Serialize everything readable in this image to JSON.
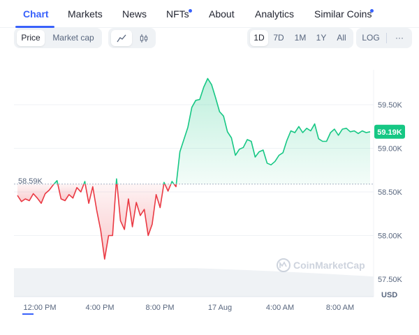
{
  "nav": {
    "tabs": [
      {
        "label": "Chart",
        "active": true
      },
      {
        "label": "Markets"
      },
      {
        "label": "News"
      },
      {
        "label": "NFTs",
        "dot": true
      },
      {
        "label": "About"
      },
      {
        "label": "Analytics"
      },
      {
        "label": "Similar Coins",
        "dot": true
      }
    ]
  },
  "toolbar": {
    "metric": {
      "price_label": "Price",
      "market_cap_label": "Market cap",
      "selected": "Price"
    },
    "chart_style": {
      "line_icon": "line-chart-icon",
      "candle_icon": "candlestick-icon",
      "selected": "line"
    },
    "ranges": [
      "1D",
      "7D",
      "1M",
      "1Y",
      "All"
    ],
    "selected_range": "1D",
    "log_label": "LOG",
    "more_label": "···"
  },
  "chart_data": {
    "type": "area",
    "x_ticks": [
      "12:00 PM",
      "4:00 PM",
      "8:00 PM",
      "17 Aug",
      "4:00 AM",
      "8:00 AM"
    ],
    "y_ticks": [
      "59.50K",
      "59.00K",
      "58.50K",
      "58.00K",
      "57.50K"
    ],
    "y_tick_values": [
      59500,
      59000,
      58500,
      58000,
      57500
    ],
    "unit_label": "USD",
    "ylim": [
      57300,
      59900
    ],
    "reference": {
      "label": "58.59K",
      "value": 58590
    },
    "current": {
      "label": "59.19K",
      "value": 59190
    },
    "watermark": "CoinMarketCap",
    "colors": {
      "up": "#16c784",
      "down": "#ea3943",
      "current_badge": "#16c784"
    },
    "series_approx": [
      58460,
      58390,
      58420,
      58400,
      58480,
      58430,
      58370,
      58480,
      58520,
      58580,
      58630,
      58420,
      58400,
      58470,
      58430,
      58550,
      58500,
      58620,
      58370,
      58560,
      58290,
      58060,
      57730,
      58000,
      58000,
      58650,
      58170,
      58070,
      58420,
      58100,
      58380,
      58230,
      58300,
      58000,
      58130,
      58470,
      58320,
      58610,
      58510,
      58620,
      58560,
      58960,
      59100,
      59240,
      59470,
      59550,
      59560,
      59700,
      59800,
      59730,
      59580,
      59420,
      59370,
      59190,
      59120,
      58920,
      58990,
      59010,
      59100,
      59080,
      58900,
      58960,
      58980,
      58830,
      58810,
      58850,
      58920,
      58950,
      59090,
      59200,
      59180,
      59250,
      59180,
      59230,
      59200,
      59280,
      59110,
      59080,
      59080,
      59180,
      59220,
      59150,
      59220,
      59230,
      59190,
      59200,
      59170,
      59200,
      59180,
      59190
    ],
    "volume_fraction": 0.85
  }
}
